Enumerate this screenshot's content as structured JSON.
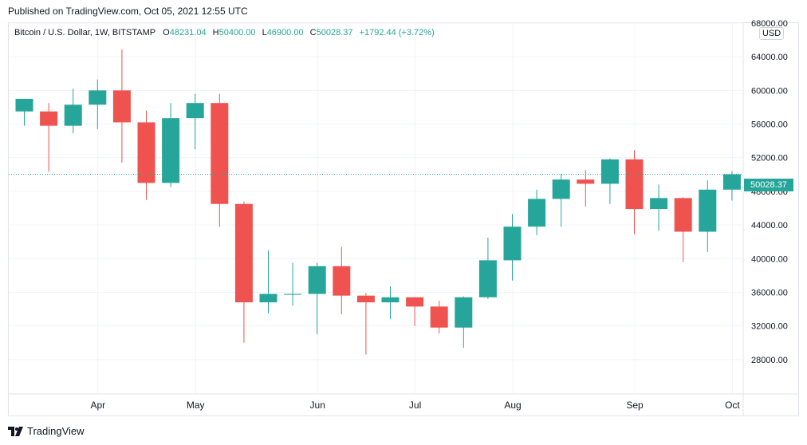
{
  "header": {
    "published": "Published on TradingView.com, Oct 05, 2021 12:55 UTC"
  },
  "legend": {
    "title": "Bitcoin / U.S. Dollar, 1W, BITSTAMP",
    "o_label": "O",
    "o_value": "48231.04",
    "h_label": "H",
    "h_value": "50400.00",
    "l_label": "L",
    "l_value": "46900.00",
    "c_label": "C",
    "c_value": "50028.37",
    "change": "+1792.44 (+3.72%)"
  },
  "currency_label": "USD",
  "last_price_label": "50028.37",
  "footer": {
    "brand": "TradingView"
  },
  "colors": {
    "up": "#26a69a",
    "down": "#ef5350",
    "grid": "#f0f3fa",
    "axis_text": "#131722"
  },
  "chart_data": {
    "type": "candlestick",
    "title": "Bitcoin / U.S. Dollar, 1W, BITSTAMP",
    "ylim": [
      24000,
      68000
    ],
    "y_ticks": [
      28000,
      32000,
      36000,
      40000,
      44000,
      48000,
      52000,
      56000,
      60000,
      64000,
      68000
    ],
    "y_tick_labels": [
      "28000.00",
      "32000.00",
      "36000.00",
      "40000.00",
      "44000.00",
      "48000.00",
      "52000.00",
      "56000.00",
      "60000.00",
      "64000.00",
      "68000.00"
    ],
    "x_labels": [
      {
        "label": "Apr",
        "index": 3
      },
      {
        "label": "May",
        "index": 7
      },
      {
        "label": "Jun",
        "index": 12
      },
      {
        "label": "Jul",
        "index": 16
      },
      {
        "label": "Aug",
        "index": 20
      },
      {
        "label": "Sep",
        "index": 25
      },
      {
        "label": "Oct",
        "index": 29
      }
    ],
    "last_price": 50028.37,
    "candles": [
      {
        "o": 57500,
        "h": 59000,
        "l": 55800,
        "c": 59000
      },
      {
        "o": 57500,
        "h": 58500,
        "l": 50300,
        "c": 55800
      },
      {
        "o": 55800,
        "h": 60200,
        "l": 54900,
        "c": 58300
      },
      {
        "o": 58300,
        "h": 61300,
        "l": 55400,
        "c": 60000
      },
      {
        "o": 60000,
        "h": 64900,
        "l": 51400,
        "c": 56200
      },
      {
        "o": 56200,
        "h": 57600,
        "l": 47000,
        "c": 49000
      },
      {
        "o": 49000,
        "h": 58500,
        "l": 48500,
        "c": 56700
      },
      {
        "o": 56700,
        "h": 59600,
        "l": 53000,
        "c": 58500
      },
      {
        "o": 58500,
        "h": 59600,
        "l": 43800,
        "c": 46500
      },
      {
        "o": 46500,
        "h": 46800,
        "l": 30000,
        "c": 34800
      },
      {
        "o": 34800,
        "h": 41000,
        "l": 33500,
        "c": 35800
      },
      {
        "o": 35700,
        "h": 39500,
        "l": 34400,
        "c": 35800
      },
      {
        "o": 35800,
        "h": 39500,
        "l": 31000,
        "c": 39100
      },
      {
        "o": 39100,
        "h": 41400,
        "l": 33400,
        "c": 35600
      },
      {
        "o": 35600,
        "h": 35900,
        "l": 28600,
        "c": 34800
      },
      {
        "o": 34800,
        "h": 36700,
        "l": 32800,
        "c": 35400
      },
      {
        "o": 35400,
        "h": 35400,
        "l": 32000,
        "c": 34300
      },
      {
        "o": 34300,
        "h": 35000,
        "l": 31100,
        "c": 31800
      },
      {
        "o": 31800,
        "h": 35500,
        "l": 29400,
        "c": 35400
      },
      {
        "o": 35400,
        "h": 42500,
        "l": 35200,
        "c": 39800
      },
      {
        "o": 39800,
        "h": 45300,
        "l": 37400,
        "c": 43800
      },
      {
        "o": 43800,
        "h": 48200,
        "l": 42800,
        "c": 47100
      },
      {
        "o": 47100,
        "h": 50100,
        "l": 43800,
        "c": 49400
      },
      {
        "o": 49400,
        "h": 50500,
        "l": 46200,
        "c": 48900
      },
      {
        "o": 48900,
        "h": 51900,
        "l": 46500,
        "c": 51800
      },
      {
        "o": 51800,
        "h": 52900,
        "l": 42900,
        "c": 45900
      },
      {
        "o": 45900,
        "h": 48800,
        "l": 43300,
        "c": 47200
      },
      {
        "o": 47200,
        "h": 47300,
        "l": 39600,
        "c": 43200
      },
      {
        "o": 43200,
        "h": 49300,
        "l": 40800,
        "c": 48200
      },
      {
        "o": 48200,
        "h": 50400,
        "l": 46900,
        "c": 50028.37
      }
    ]
  }
}
